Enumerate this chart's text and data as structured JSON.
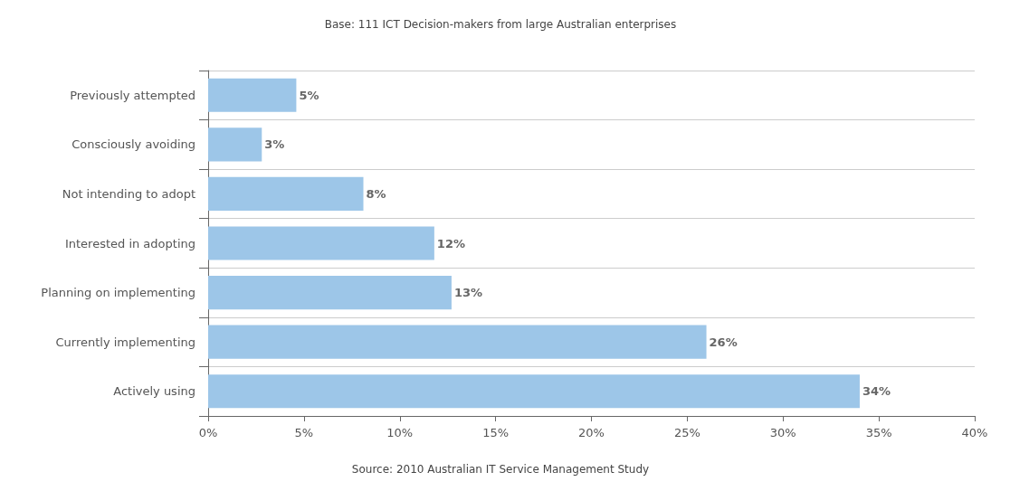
{
  "chart_data": {
    "type": "bar",
    "orientation": "horizontal",
    "title": "Base: 111 ICT Decision-makers from large Australian enterprises",
    "categories": [
      "Previously attempted",
      "Consciously avoiding",
      "Not intending to adopt",
      "Interested in adopting",
      "Planning on implementing",
      "Currently implementing",
      "Actively using"
    ],
    "values": [
      4.6,
      2.8,
      8.1,
      11.8,
      12.7,
      26,
      34
    ],
    "value_labels": [
      "5%",
      "3%",
      "8%",
      "12%",
      "13%",
      "26%",
      "34%"
    ],
    "color": "#9dc6e8",
    "xlim": [
      0,
      40
    ],
    "xticks": [
      {
        "value": 0,
        "label": "0%"
      },
      {
        "value": 5,
        "label": "5%"
      },
      {
        "value": 10,
        "label": "10%"
      },
      {
        "value": 15,
        "label": "15%"
      },
      {
        "value": 20,
        "label": "20%"
      },
      {
        "value": 25,
        "label": "25%"
      },
      {
        "value": 30,
        "label": "30%"
      },
      {
        "value": 35,
        "label": "35%"
      },
      {
        "value": 40,
        "label": "40%"
      }
    ],
    "grid": "y",
    "annotations": [
      "Source: 2010 Australian IT Service Management Study"
    ]
  }
}
